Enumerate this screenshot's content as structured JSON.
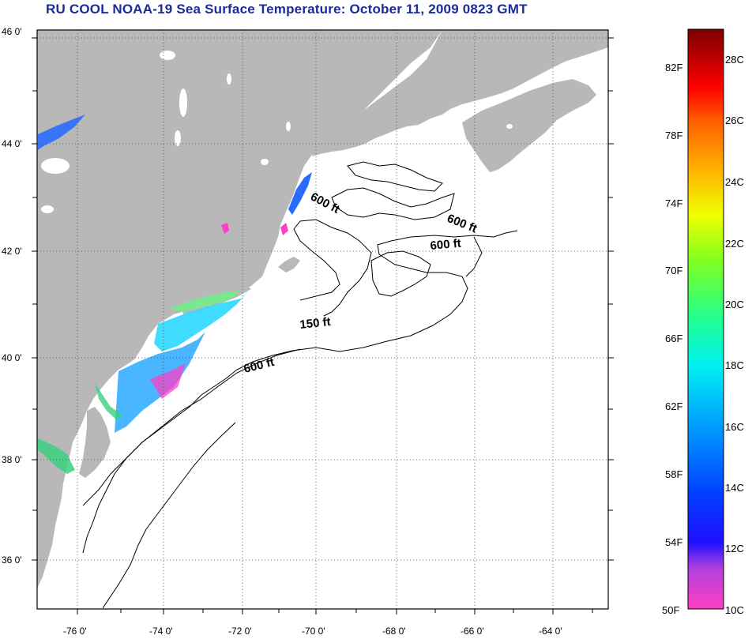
{
  "title": "RU COOL  NOAA-19  Sea Surface Temperature:  October 11, 2009 0823 GMT",
  "map": {
    "lat_ticks": [
      "46 0'",
      "44 0'",
      "42 0'",
      "40 0'",
      "38 0'",
      "36 0'"
    ],
    "lon_ticks": [
      "-76 0'",
      "-74 0'",
      "-72 0'",
      "-70 0'",
      "-68 0'",
      "-66 0'",
      "-64 0'"
    ],
    "contour_labels": [
      "600 ft",
      "600 ft",
      "600 ft",
      "150 ft",
      "600 ft"
    ],
    "colors": {
      "land": "#b8b8b8",
      "ocean": "#ffffff",
      "title": "#1a2b9c"
    }
  },
  "colorbar": {
    "fahrenheit_labels": [
      "82F",
      "78F",
      "74F",
      "70F",
      "66F",
      "62F",
      "58F",
      "54F",
      "50F"
    ],
    "celsius_labels": [
      "28C",
      "26C",
      "24C",
      "22C",
      "20C",
      "18C",
      "16C",
      "14C",
      "12C",
      "10C"
    ]
  }
}
